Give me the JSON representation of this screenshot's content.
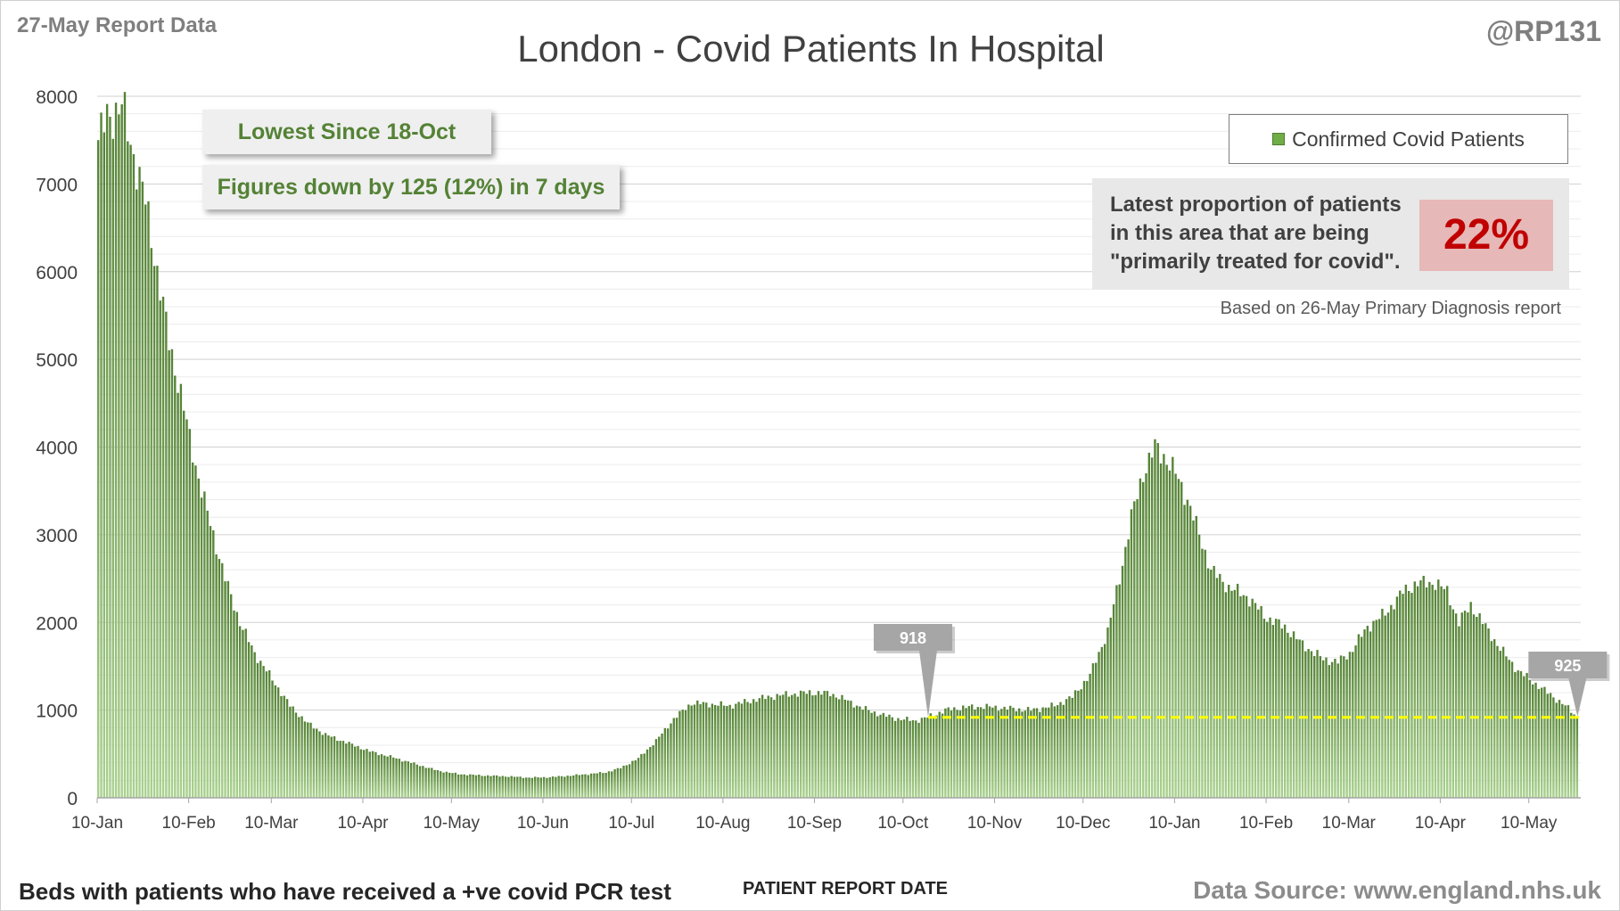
{
  "report_date": "27-May Report Data",
  "handle": "@RP131",
  "footer_left": "Beds with patients who have received a +ve covid PCR test",
  "footer_right": "Data Source: www.england.nhs.uk",
  "callouts": {
    "lowest": "Lowest Since 18-Oct",
    "down": "Figures down by 125 (12%) in 7 days"
  },
  "proportion_box": {
    "lines": [
      "Latest proportion of patients",
      "in this area that are being",
      "\"primarily treated for covid\"."
    ],
    "value": "22%",
    "note": "Based on 26-May Primary Diagnosis report"
  },
  "colors": {
    "bar_top": "#548235",
    "bar_bottom": "#a9d18e",
    "reference_line": "#ffff00",
    "highlight_value": "#c00000"
  },
  "chart_data": {
    "type": "bar",
    "title": "London - Covid Patients In Hospital",
    "xlabel": "PATIENT REPORT DATE",
    "ylabel": "",
    "ylim": [
      0,
      8000
    ],
    "yticks": [
      0,
      1000,
      2000,
      3000,
      4000,
      5000,
      6000,
      7000,
      8000
    ],
    "grid": true,
    "legend_position": "top-right",
    "series": [
      {
        "name": "Confirmed Covid Patients"
      }
    ],
    "x_tick_labels": [
      "10-Jan",
      "10-Feb",
      "10-Mar",
      "10-Apr",
      "10-May",
      "10-Jun",
      "10-Jul",
      "10-Aug",
      "10-Sep",
      "10-Oct",
      "10-Nov",
      "10-Dec",
      "10-Jan",
      "10-Feb",
      "10-Mar",
      "10-Apr",
      "10-May"
    ],
    "start_date": "2021-01-10",
    "end_date": "2022-05-26",
    "anchor_points": [
      [
        "2021-01-10",
        7500
      ],
      [
        "2021-01-13",
        7750
      ],
      [
        "2021-01-15",
        7800
      ],
      [
        "2021-01-18",
        7900
      ],
      [
        "2021-01-20",
        7600
      ],
      [
        "2021-01-23",
        7200
      ],
      [
        "2021-01-26",
        6800
      ],
      [
        "2021-01-30",
        6000
      ],
      [
        "2021-02-03",
        5200
      ],
      [
        "2021-02-07",
        4600
      ],
      [
        "2021-02-10",
        4100
      ],
      [
        "2021-02-14",
        3500
      ],
      [
        "2021-02-18",
        3000
      ],
      [
        "2021-02-22",
        2500
      ],
      [
        "2021-02-27",
        2000
      ],
      [
        "2021-03-04",
        1650
      ],
      [
        "2021-03-10",
        1350
      ],
      [
        "2021-03-16",
        1050
      ],
      [
        "2021-03-22",
        850
      ],
      [
        "2021-03-28",
        720
      ],
      [
        "2021-04-05",
        620
      ],
      [
        "2021-04-12",
        530
      ],
      [
        "2021-04-20",
        460
      ],
      [
        "2021-04-28",
        380
      ],
      [
        "2021-05-05",
        310
      ],
      [
        "2021-05-12",
        270
      ],
      [
        "2021-05-20",
        255
      ],
      [
        "2021-05-28",
        245
      ],
      [
        "2021-06-05",
        230
      ],
      [
        "2021-06-12",
        235
      ],
      [
        "2021-06-18",
        250
      ],
      [
        "2021-06-25",
        270
      ],
      [
        "2021-07-01",
        290
      ],
      [
        "2021-07-06",
        340
      ],
      [
        "2021-07-12",
        450
      ],
      [
        "2021-07-18",
        650
      ],
      [
        "2021-07-24",
        900
      ],
      [
        "2021-07-30",
        1080
      ],
      [
        "2021-08-05",
        1070
      ],
      [
        "2021-08-12",
        1050
      ],
      [
        "2021-08-18",
        1100
      ],
      [
        "2021-08-25",
        1150
      ],
      [
        "2021-09-01",
        1180
      ],
      [
        "2021-09-08",
        1200
      ],
      [
        "2021-09-15",
        1190
      ],
      [
        "2021-09-20",
        1120
      ],
      [
        "2021-09-26",
        1020
      ],
      [
        "2021-10-02",
        950
      ],
      [
        "2021-10-08",
        900
      ],
      [
        "2021-10-14",
        880
      ],
      [
        "2021-10-18",
        918
      ],
      [
        "2021-10-24",
        1000
      ],
      [
        "2021-10-30",
        1030
      ],
      [
        "2021-11-06",
        1040
      ],
      [
        "2021-11-14",
        1020
      ],
      [
        "2021-11-22",
        1000
      ],
      [
        "2021-11-30",
        1050
      ],
      [
        "2021-12-06",
        1150
      ],
      [
        "2021-12-12",
        1400
      ],
      [
        "2021-12-18",
        1900
      ],
      [
        "2021-12-22",
        2500
      ],
      [
        "2021-12-26",
        3200
      ],
      [
        "2021-12-30",
        3700
      ],
      [
        "2022-01-03",
        4000
      ],
      [
        "2022-01-06",
        3900
      ],
      [
        "2022-01-10",
        3700
      ],
      [
        "2022-01-14",
        3400
      ],
      [
        "2022-01-18",
        3000
      ],
      [
        "2022-01-22",
        2600
      ],
      [
        "2022-01-28",
        2400
      ],
      [
        "2022-02-03",
        2300
      ],
      [
        "2022-02-10",
        2050
      ],
      [
        "2022-02-16",
        1950
      ],
      [
        "2022-02-22",
        1750
      ],
      [
        "2022-03-01",
        1580
      ],
      [
        "2022-03-06",
        1550
      ],
      [
        "2022-03-10",
        1650
      ],
      [
        "2022-03-16",
        1950
      ],
      [
        "2022-03-22",
        2100
      ],
      [
        "2022-03-28",
        2350
      ],
      [
        "2022-04-02",
        2450
      ],
      [
        "2022-04-08",
        2450
      ],
      [
        "2022-04-12",
        2350
      ],
      [
        "2022-04-16",
        2000
      ],
      [
        "2022-04-20",
        2200
      ],
      [
        "2022-04-25",
        1950
      ],
      [
        "2022-04-30",
        1700
      ],
      [
        "2022-05-06",
        1450
      ],
      [
        "2022-05-12",
        1300
      ],
      [
        "2022-05-18",
        1150
      ],
      [
        "2022-05-22",
        1050
      ],
      [
        "2022-05-26",
        925
      ]
    ],
    "annotations": [
      {
        "label": "918",
        "date": "2021-10-18",
        "value": 918
      },
      {
        "label": "925",
        "date": "2022-05-26",
        "value": 925
      }
    ],
    "reference_line": {
      "value": 918,
      "from": "2021-10-18",
      "to": "2022-05-26",
      "style": "dashed"
    }
  }
}
